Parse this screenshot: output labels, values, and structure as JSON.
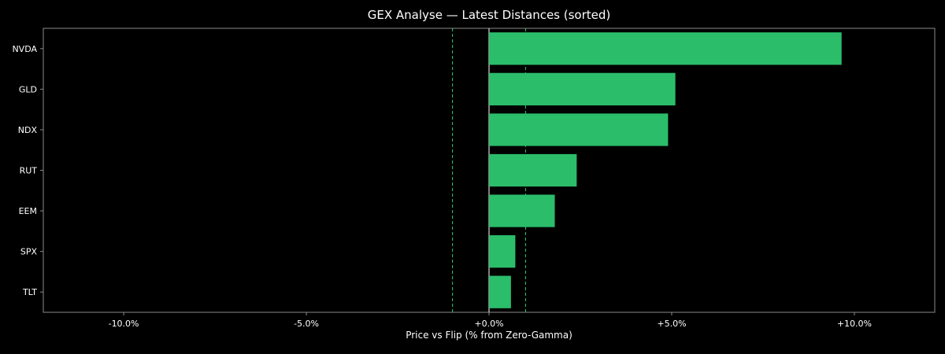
{
  "chart_data": {
    "type": "bar",
    "orientation": "horizontal",
    "title": "GEX Analyse — Latest Distances (sorted)",
    "xlabel": "Price vs Flip (% from Zero-Gamma)",
    "ylabel": "",
    "categories": [
      "NVDA",
      "GLD",
      "NDX",
      "RUT",
      "EEM",
      "SPX",
      "TLT"
    ],
    "values": [
      9.65,
      5.1,
      4.9,
      2.4,
      1.8,
      0.72,
      0.6
    ],
    "xlim": [
      -12.2,
      12.2
    ],
    "xticks": [
      -10,
      -5,
      0,
      5,
      10
    ],
    "xtick_labels": [
      "-10.0%",
      "-5.0%",
      "+0.0%",
      "+5.0%",
      "+10.0%"
    ],
    "reference_lines": [
      {
        "x": 0,
        "style": "solid",
        "color": "#ffffff"
      },
      {
        "x": -1,
        "style": "dashed",
        "color": "#2ecc71"
      },
      {
        "x": 1,
        "style": "dashed",
        "color": "#2ecc71"
      }
    ],
    "grid": false,
    "legend": "none",
    "colors": {
      "background": "#000000",
      "bar": "#2bbd6a",
      "text": "#ffffff",
      "axis": "#8a8a8a"
    }
  }
}
